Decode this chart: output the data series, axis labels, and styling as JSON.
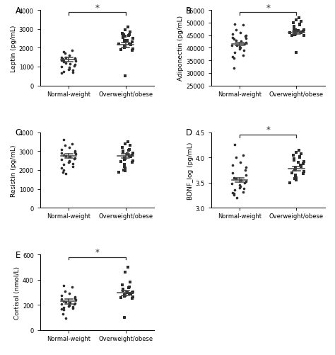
{
  "panel_A": {
    "label": "A",
    "ylabel": "Leptin (pg/mL)",
    "ylim": [
      0,
      4000
    ],
    "yticks": [
      0,
      1000,
      2000,
      3000,
      4000
    ],
    "group1_mean": 1380,
    "group1_sem": 120,
    "group2_mean": 2150,
    "group2_sem": 130,
    "group1_points": [
      1800,
      1850,
      1700,
      1600,
      1500,
      1450,
      1400,
      1350,
      1300,
      1250,
      1200,
      1150,
      1100,
      1050,
      1000,
      950,
      900,
      850,
      800,
      750,
      700,
      650,
      1300,
      1400,
      1500
    ],
    "group2_points": [
      3100,
      2950,
      2850,
      2750,
      2700,
      2650,
      2600,
      2550,
      2500,
      2400,
      2300,
      2200,
      2150,
      2100,
      2050,
      2000,
      1950,
      1900,
      1850,
      2300,
      2400,
      2600,
      2700,
      500,
      2200
    ],
    "sig": "*",
    "xticklabels": [
      "Normal-weight",
      "Overweight/obese"
    ]
  },
  "panel_B": {
    "label": "B",
    "ylabel": "Adiponectin (pg/mL)",
    "ylim": [
      25000,
      55000
    ],
    "yticks": [
      25000,
      30000,
      35000,
      40000,
      45000,
      50000,
      55000
    ],
    "group1_mean": 41500,
    "group1_sem": 600,
    "group2_mean": 46000,
    "group2_sem": 600,
    "group1_points": [
      49500,
      49000,
      47000,
      46000,
      45500,
      45000,
      44500,
      44000,
      43800,
      43500,
      43000,
      42500,
      42000,
      41500,
      41000,
      40500,
      40000,
      39500,
      39000,
      38000,
      37000,
      36500,
      36000,
      32000,
      41000
    ],
    "group2_points": [
      52000,
      51000,
      50500,
      50000,
      49500,
      49000,
      48500,
      47500,
      47000,
      46800,
      46500,
      46200,
      46000,
      45800,
      45500,
      45200,
      45000,
      44800,
      46500,
      47000,
      46800,
      46500,
      46200,
      38000,
      46000
    ],
    "sig": "*",
    "xticklabels": [
      "Normal-weight",
      "Overweight/obese"
    ]
  },
  "panel_C": {
    "label": "C",
    "ylabel": "Resistin (pg/mL)",
    "ylim": [
      0,
      4000
    ],
    "yticks": [
      0,
      1000,
      2000,
      3000,
      4000
    ],
    "group1_mean": 2750,
    "group1_sem": 100,
    "group2_mean": 2750,
    "group2_sem": 100,
    "group1_points": [
      3600,
      3400,
      3300,
      3200,
      3100,
      3000,
      2950,
      2900,
      2850,
      2800,
      2750,
      2700,
      2650,
      2600,
      2550,
      2500,
      2450,
      2400,
      2350,
      2300,
      2200,
      2100,
      2000,
      1900,
      1800
    ],
    "group2_points": [
      3500,
      3400,
      3300,
      3200,
      3100,
      3050,
      3000,
      2950,
      2900,
      2850,
      2800,
      2750,
      2700,
      2650,
      2600,
      2550,
      2500,
      2450,
      2400,
      2300,
      2200,
      2100,
      2000,
      1950,
      1900
    ],
    "sig": null,
    "xticklabels": [
      "Normal-weight",
      "Overweight/obese"
    ]
  },
  "panel_D": {
    "label": "D",
    "ylabel": "BDNF_log (pg/mL)",
    "ylim": [
      3.0,
      4.5
    ],
    "yticks": [
      3.0,
      3.5,
      4.0,
      4.5
    ],
    "group1_mean": 3.55,
    "group1_sem": 0.04,
    "group2_mean": 3.78,
    "group2_sem": 0.04,
    "group1_points": [
      4.25,
      4.05,
      4.0,
      3.9,
      3.85,
      3.8,
      3.75,
      3.7,
      3.65,
      3.6,
      3.58,
      3.55,
      3.52,
      3.5,
      3.48,
      3.45,
      3.42,
      3.4,
      3.38,
      3.35,
      3.32,
      3.3,
      3.28,
      3.25,
      3.2
    ],
    "group2_points": [
      4.15,
      4.1,
      4.08,
      4.05,
      4.02,
      4.0,
      3.98,
      3.95,
      3.92,
      3.9,
      3.88,
      3.85,
      3.82,
      3.8,
      3.78,
      3.75,
      3.72,
      3.7,
      3.68,
      3.65,
      3.62,
      3.6,
      3.58,
      3.55,
      3.5
    ],
    "sig": "*",
    "xticklabels": [
      "Normal-weight",
      "Overweight/obese"
    ]
  },
  "panel_E": {
    "label": "E",
    "ylabel": "Cortisol (nmol/L)",
    "ylim": [
      0,
      600
    ],
    "yticks": [
      0,
      200,
      400,
      600
    ],
    "group1_mean": 228,
    "group1_sem": 18,
    "group2_mean": 295,
    "group2_sem": 22,
    "group1_points": [
      355,
      340,
      310,
      290,
      275,
      265,
      255,
      248,
      240,
      232,
      225,
      220,
      215,
      210,
      205,
      200,
      195,
      190,
      185,
      180,
      175,
      170,
      160,
      130,
      95
    ],
    "group2_points": [
      500,
      460,
      380,
      360,
      345,
      335,
      325,
      315,
      305,
      300,
      295,
      290,
      285,
      280,
      275,
      270,
      265,
      260,
      250,
      100
    ],
    "sig": "*",
    "xticklabels": [
      "Normal-weight",
      "Overweight/obese"
    ]
  },
  "dot_color": "#2d2d2d",
  "line_color": "#444444",
  "sig_line_color": "#2d2d2d",
  "marker_group1": "o",
  "marker_group2": "s",
  "fontsize_ylabel": 6.5,
  "fontsize_tick": 6.0,
  "fontsize_panel": 8.5
}
